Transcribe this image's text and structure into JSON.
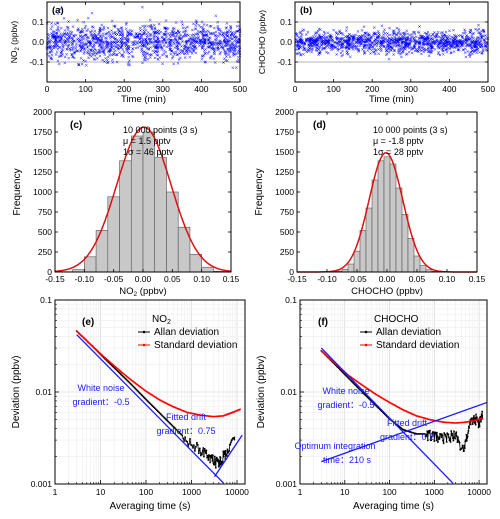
{
  "figure": {
    "panels": [
      {
        "id": "a",
        "label": "(a)"
      },
      {
        "id": "b",
        "label": "(b)"
      },
      {
        "id": "c",
        "label": "(c)"
      },
      {
        "id": "d",
        "label": "(d)"
      },
      {
        "id": "e",
        "label": "(e)"
      },
      {
        "id": "f",
        "label": "(f)"
      }
    ]
  },
  "chart_data": [
    {
      "id": "a",
      "type": "scatter",
      "label": "(a)",
      "xlabel": "Time (min)",
      "ylabel_main": "NO",
      "ylabel_sub": "2",
      "ylabel_tail": " (ppbv)",
      "xlim": [
        0,
        500
      ],
      "ylim": [
        -0.2,
        0.2
      ],
      "xticks": [
        "0",
        "100",
        "200",
        "300",
        "400",
        "500"
      ],
      "yticks": [
        "-0.1",
        "0.0",
        "0.1"
      ],
      "hlines": [
        -0.1,
        0.0,
        0.1
      ],
      "points": 10000,
      "mu": 0.0015,
      "sigma": 0.046,
      "marker": "x",
      "color": "#0000ff"
    },
    {
      "id": "b",
      "type": "scatter",
      "label": "(b)",
      "xlabel": "Time (min)",
      "ylabel_main": "CHOCHO (ppbv)",
      "xlim": [
        0,
        500
      ],
      "ylim": [
        -0.2,
        0.2
      ],
      "xticks": [
        "0",
        "100",
        "200",
        "300",
        "400",
        "500"
      ],
      "yticks": [
        "-0.1",
        "0.0",
        "0.1"
      ],
      "hlines": [
        -0.1,
        0.0,
        0.1
      ],
      "points": 10000,
      "mu": -0.0018,
      "sigma": 0.028,
      "marker": "x",
      "color": "#0000ff"
    },
    {
      "id": "c",
      "type": "bar",
      "label": "(c)",
      "xlabel_main": "NO",
      "xlabel_sub": "2",
      "xlabel_tail": " (ppbv)",
      "ylabel": "Frequency",
      "xlim": [
        -0.15,
        0.15
      ],
      "ylim": [
        0,
        2000
      ],
      "xticks": [
        "-0.15",
        "-0.10",
        "-0.05",
        "0.00",
        "0.05",
        "0.10",
        "0.15"
      ],
      "yticks": [
        "0",
        "250",
        "500",
        "750",
        "1000",
        "1250",
        "1500",
        "1750",
        "2000"
      ],
      "bin_centers": [
        -0.13,
        -0.11,
        -0.09,
        -0.07,
        -0.05,
        -0.03,
        -0.01,
        0.01,
        0.03,
        0.05,
        0.07,
        0.09,
        0.11,
        0.13
      ],
      "bin_width": 0.02,
      "values": [
        4,
        30,
        190,
        520,
        940,
        1390,
        1700,
        1750,
        1430,
        1000,
        560,
        220,
        60,
        8
      ],
      "fit": {
        "type": "gaussian",
        "amplitude": 1810,
        "mu": 0.0015,
        "sigma": 0.046,
        "color": "#dd1111"
      },
      "annotation": [
        "10 000 points (3 s)",
        "μ = 1.5 pptv",
        "1σ = 46 pptv"
      ]
    },
    {
      "id": "d",
      "type": "bar",
      "label": "(d)",
      "xlabel": "CHOCHO (ppbv)",
      "ylabel": "Frequency",
      "xlim": [
        -0.15,
        0.15
      ],
      "ylim": [
        0,
        2000
      ],
      "xticks": [
        "-0.15",
        "-0.10",
        "-0.05",
        "0.00",
        "0.05",
        "0.10",
        "0.15"
      ],
      "yticks": [
        "0",
        "250",
        "500",
        "750",
        "1000",
        "1250",
        "1500",
        "1750",
        "2000"
      ],
      "bin_centers": [
        -0.09,
        -0.08,
        -0.07,
        -0.06,
        -0.05,
        -0.04,
        -0.03,
        -0.02,
        -0.01,
        0.0,
        0.01,
        0.02,
        0.03,
        0.04,
        0.05,
        0.06,
        0.07,
        0.08,
        0.09
      ],
      "bin_width": 0.01,
      "values": [
        3,
        12,
        35,
        100,
        260,
        520,
        800,
        1150,
        1390,
        1440,
        1350,
        1050,
        720,
        420,
        200,
        80,
        28,
        8,
        3
      ],
      "fit": {
        "type": "gaussian",
        "amplitude": 1490,
        "mu": -0.0018,
        "sigma": 0.028,
        "color": "#dd1111"
      },
      "annotation": [
        "10 000 points (3 s)",
        "μ = -1.8 pptv",
        "1σ = 28 pptv"
      ]
    },
    {
      "id": "e",
      "type": "line",
      "label": "(e)",
      "xlabel": "Averaging time (s)",
      "ylabel": "Deviation (ppbv)",
      "xscale": "log",
      "yscale": "log",
      "xlim": [
        1,
        15000
      ],
      "ylim": [
        0.001,
        0.1
      ],
      "xticks": [
        "1",
        "10",
        "100",
        "1000",
        "10000"
      ],
      "yticks": [
        "0.001",
        "0.01",
        "0.1"
      ],
      "legend_title_main": "NO",
      "legend_title_sub": "2",
      "series": [
        {
          "name": "Allan deviation",
          "color": "#000000",
          "style": "line-dots",
          "x": [
            3,
            6,
            12,
            25,
            50,
            100,
            200,
            400,
            800,
            1600,
            2500,
            3500,
            4500,
            6000,
            9000
          ],
          "y": [
            0.046,
            0.033,
            0.0235,
            0.0165,
            0.0118,
            0.0083,
            0.0059,
            0.0042,
            0.003,
            0.0023,
            0.0019,
            0.0017,
            0.0018,
            0.0023,
            0.0033
          ]
        },
        {
          "name": "Standard deviation",
          "color": "#ff0000",
          "style": "line-dots",
          "x": [
            3,
            6,
            12,
            25,
            50,
            100,
            200,
            400,
            800,
            1600,
            3000,
            5000,
            8000,
            12000
          ],
          "y": [
            0.046,
            0.033,
            0.024,
            0.0175,
            0.0132,
            0.0102,
            0.0082,
            0.0069,
            0.006,
            0.0056,
            0.0054,
            0.0055,
            0.006,
            0.0065
          ]
        }
      ],
      "fits": [
        {
          "name": "White noise gradient",
          "slope": -0.5,
          "x": [
            3,
            5000
          ],
          "y": [
            0.042,
            0.00103
          ],
          "color": "#1a1aff"
        },
        {
          "name": "Fitted drift gradient",
          "slope": 0.75,
          "x": [
            3200,
            13000
          ],
          "y": [
            0.0012,
            0.0034
          ],
          "color": "#1a1aff"
        }
      ],
      "annotations": [
        "White noise",
        "gradient：-0.5",
        "Fitted drift",
        "gradient：0.75"
      ]
    },
    {
      "id": "f",
      "type": "line",
      "label": "(f)",
      "xlabel": "Averaging time (s)",
      "ylabel": "Deviation (ppbv)",
      "xscale": "log",
      "yscale": "log",
      "xlim": [
        1,
        15000
      ],
      "ylim": [
        0.001,
        0.1
      ],
      "xticks": [
        "1",
        "10",
        "100",
        "1000",
        "10000"
      ],
      "yticks": [
        "0.001",
        "0.01",
        "0.1"
      ],
      "legend_title": "CHOCHO",
      "series": [
        {
          "name": "Allan deviation",
          "color": "#000000",
          "style": "line-dots",
          "x": [
            3,
            6,
            12,
            25,
            50,
            100,
            200,
            400,
            600,
            900,
            1300,
            2000,
            3000,
            4500,
            6000,
            8000,
            10000,
            12000
          ],
          "y": [
            0.028,
            0.02,
            0.0142,
            0.0099,
            0.0071,
            0.0051,
            0.0039,
            0.0035,
            0.0035,
            0.0033,
            0.0031,
            0.0032,
            0.0034,
            0.0022,
            0.0043,
            0.0052,
            0.0045,
            0.0056
          ]
        },
        {
          "name": "Standard deviation",
          "color": "#ff0000",
          "style": "line-dots",
          "x": [
            3,
            6,
            12,
            25,
            50,
            100,
            200,
            400,
            800,
            1600,
            3000,
            5000,
            8000,
            12000
          ],
          "y": [
            0.028,
            0.0205,
            0.0152,
            0.0118,
            0.0094,
            0.0077,
            0.0064,
            0.0055,
            0.005,
            0.0047,
            0.0046,
            0.0047,
            0.0049,
            0.0052
          ]
        }
      ],
      "fits": [
        {
          "name": "White noise gradient",
          "slope": -0.5,
          "x": [
            3,
            2600
          ],
          "y": [
            0.03,
            0.00102
          ],
          "color": "#1a1aff"
        },
        {
          "name": "Fitted drift gradient",
          "slope": 0.2,
          "x": [
            3,
            15000
          ],
          "y": [
            0.00175,
            0.0077
          ],
          "color": "#1a1aff"
        }
      ],
      "annotations": [
        "White noise",
        "gradient：-0.5",
        "Fitted drift",
        "gradient：0.2",
        "Optimum integration",
        "time：210 s"
      ]
    }
  ]
}
